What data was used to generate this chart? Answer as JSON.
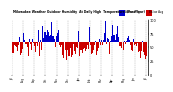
{
  "title": "Milwaukee Weather Outdoor Humidity",
  "subtitle1": "At Daily High",
  "subtitle2": "Temperature",
  "subtitle3": "(Past Year)",
  "legend_above": "Avg",
  "legend_below": "Below Avg",
  "ylim": [
    0,
    100
  ],
  "ylabel_right": [
    "100",
    "75",
    "50",
    "25",
    "0"
  ],
  "background_color": "#ffffff",
  "bar_color_above": "#0000cc",
  "bar_color_below": "#cc0000",
  "avg_line": 60,
  "num_bars": 365,
  "seed": 42
}
